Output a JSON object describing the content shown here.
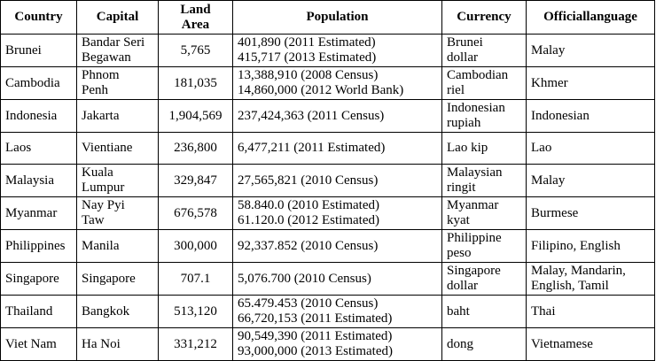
{
  "headers": {
    "country": "Country",
    "capital": "Capital",
    "land_area": [
      "Land",
      "Area"
    ],
    "population": "Population",
    "currency": "Currency",
    "language": "Officiallanguage"
  },
  "rows": [
    {
      "country": "Brunei",
      "capital": [
        "Bandar Seri",
        "Begawan"
      ],
      "area": "5,765",
      "population": [
        "401,890 (2011 Estimated)",
        "415,717 (2013 Estimated)"
      ],
      "currency": [
        "Brunei",
        "dollar"
      ],
      "language": [
        "Malay"
      ]
    },
    {
      "country": "Cambodia",
      "capital": [
        "Phnom",
        "Penh"
      ],
      "area": "181,035",
      "population": [
        "13,388,910 (2008 Census)",
        "14,860,000 (2012 World Bank)"
      ],
      "currency": [
        "Cambodian",
        "riel"
      ],
      "language": [
        "Khmer"
      ]
    },
    {
      "country": "Indonesia",
      "capital": [
        "Jakarta"
      ],
      "area": "1,904,569",
      "population": [
        "237,424,363 (2011 Census)"
      ],
      "currency": [
        "Indonesian",
        "rupiah"
      ],
      "language": [
        "Indonesian"
      ]
    },
    {
      "country": "Laos",
      "capital": [
        "Vientiane"
      ],
      "area": "236,800",
      "population": [
        "6,477,211 (2011 Estimated)"
      ],
      "currency": [
        "Lao kip"
      ],
      "language": [
        "Lao"
      ]
    },
    {
      "country": "Malaysia",
      "capital": [
        "Kuala",
        "Lumpur"
      ],
      "area": "329,847",
      "population": [
        "27,565,821 (2010 Census)"
      ],
      "currency": [
        "Malaysian",
        "ringit"
      ],
      "language": [
        "Malay"
      ]
    },
    {
      "country": "Myanmar",
      "capital": [
        "Nay Pyi",
        "Taw"
      ],
      "area": "676,578",
      "population": [
        "58.840.0 (2010 Estimated)",
        "61.120.0 (2012 Estimated)"
      ],
      "currency": [
        "Myanmar",
        "kyat"
      ],
      "language": [
        "Burmese"
      ]
    },
    {
      "country": "Philippines",
      "capital": [
        "Manila"
      ],
      "area": "300,000",
      "population": [
        "92,337.852 (2010 Census)"
      ],
      "currency": [
        "Philippine",
        "peso"
      ],
      "language": [
        "Filipino, English"
      ]
    },
    {
      "country": "Singapore",
      "capital": [
        "Singapore"
      ],
      "area": "707.1",
      "population": [
        "5,076.700 (2010 Census)"
      ],
      "currency": [
        "Singapore",
        "dollar"
      ],
      "language": [
        "Malay, Mandarin,",
        "English, Tamil"
      ]
    },
    {
      "country": "Thailand",
      "capital": [
        "Bangkok"
      ],
      "area": "513,120",
      "population": [
        "65.479.453 (2010 Census)",
        "66,720,153 (2011 Estimated)"
      ],
      "currency": [
        "baht"
      ],
      "language": [
        "Thai"
      ]
    },
    {
      "country": "Viet Nam",
      "capital": [
        "Ha Noi"
      ],
      "area": "331,212",
      "population": [
        "90,549,390 (2011 Estimated)",
        "93,000,000 (2013 Estimated)"
      ],
      "currency": [
        "dong"
      ],
      "language": [
        "Vietnamese"
      ]
    }
  ]
}
